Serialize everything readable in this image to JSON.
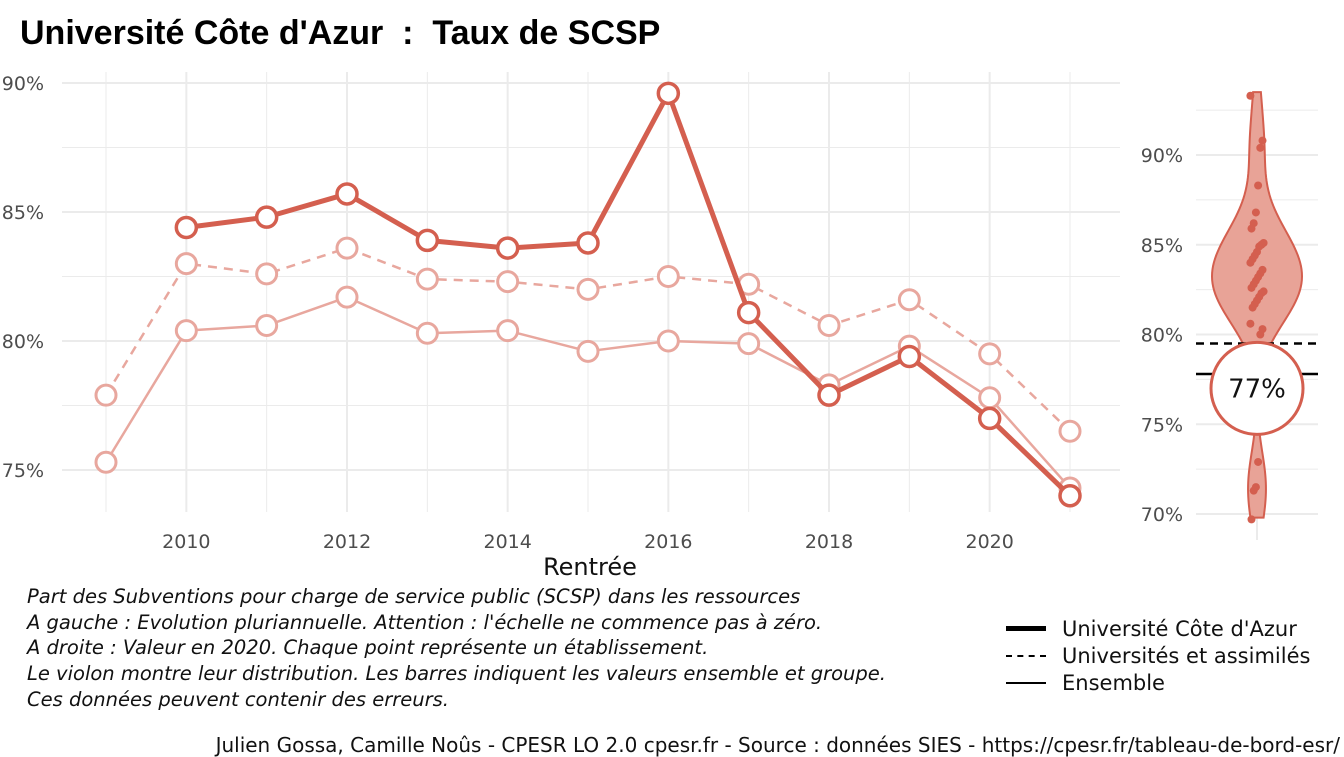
{
  "title": "Université Côte d'Azur  :  Taux de SCSP",
  "caption": [
    "Part des Subventions pour charge de service public (SCSP) dans les ressources",
    "A gauche : Evolution pluriannuelle. Attention : l'échelle ne commence pas à zéro.",
    "A droite : Valeur en 2020. Chaque point représente un établissement.",
    "Le violon montre leur distribution. Les barres indiquent les valeurs ensemble et groupe.",
    "Ces données peuvent contenir des erreurs."
  ],
  "legend": [
    {
      "label": "Université Côte d'Azur",
      "style": "solid-thick"
    },
    {
      "label": "Universités et assimilés",
      "style": "dashed"
    },
    {
      "label": "Ensemble",
      "style": "solid"
    }
  ],
  "footer": "Julien Gossa, Camille Noûs - CPESR LO 2.0 cpesr.fr - Source : données SIES - https://cpesr.fr/tableau-de-bord-esr/",
  "colors": {
    "main": "#d45f4f",
    "light": "#e8a79e",
    "violin_fill": "#e8a397",
    "grid": "#ebebeb",
    "ref_line": "#000000"
  },
  "chart_data": [
    {
      "type": "line",
      "xlabel": "Rentrée",
      "ylabel": "",
      "xlim": [
        2009,
        2021
      ],
      "ylim": [
        74,
        90
      ],
      "x_ticks": [
        2010,
        2012,
        2014,
        2016,
        2018,
        2020
      ],
      "y_ticks": [
        75,
        80,
        85,
        90
      ],
      "y_tick_labels": [
        "75%",
        "80%",
        "85%",
        "90%"
      ],
      "grid": true,
      "series": [
        {
          "name": "Université Côte d'Azur",
          "style": "solid-thick",
          "x": [
            2010,
            2011,
            2012,
            2013,
            2014,
            2015,
            2016,
            2017,
            2018,
            2019,
            2020,
            2021
          ],
          "values": [
            84.4,
            84.8,
            85.7,
            83.9,
            83.6,
            83.8,
            89.6,
            81.1,
            77.9,
            79.4,
            77.0,
            74.0
          ]
        },
        {
          "name": "Universités et assimilés",
          "style": "dashed",
          "x": [
            2009,
            2010,
            2011,
            2012,
            2013,
            2014,
            2015,
            2016,
            2017,
            2018,
            2019,
            2020,
            2021
          ],
          "values": [
            77.9,
            83.0,
            82.6,
            83.6,
            82.4,
            82.3,
            82.0,
            82.5,
            82.2,
            80.6,
            81.6,
            79.5,
            76.5
          ]
        },
        {
          "name": "Ensemble",
          "style": "solid",
          "x": [
            2009,
            2010,
            2011,
            2012,
            2013,
            2014,
            2015,
            2016,
            2017,
            2018,
            2019,
            2020,
            2021
          ],
          "values": [
            75.3,
            80.4,
            80.6,
            81.7,
            80.3,
            80.4,
            79.6,
            80.0,
            79.9,
            78.3,
            79.8,
            77.8,
            74.3
          ]
        }
      ]
    },
    {
      "type": "violin",
      "ylim": [
        69.8,
        93.5
      ],
      "y_ticks": [
        70,
        75,
        80,
        85,
        90
      ],
      "y_tick_labels": [
        "70%",
        "75%",
        "80%",
        "85%",
        "90%"
      ],
      "grid": true,
      "highlight_value": 77.0,
      "highlight_label": "77%",
      "reference_lines": [
        {
          "name": "Universités et assimilés",
          "value": 79.5,
          "style": "dashed"
        },
        {
          "name": "Ensemble",
          "value": 77.8,
          "style": "solid"
        }
      ],
      "points": [
        93.3,
        90.8,
        90.4,
        88.3,
        86.8,
        86.2,
        85.9,
        85.1,
        85.0,
        84.9,
        84.6,
        84.4,
        84.2,
        84.0,
        83.6,
        83.4,
        83.2,
        83.0,
        82.8,
        82.6,
        82.4,
        82.3,
        82.1,
        81.9,
        81.7,
        81.5,
        80.6,
        80.3,
        80.0,
        72.9,
        71.5,
        71.3,
        69.7
      ]
    }
  ]
}
